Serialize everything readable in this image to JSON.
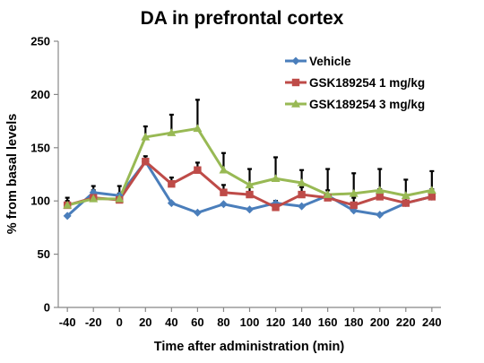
{
  "chart_data": {
    "type": "line",
    "title": "DA  in prefrontal cortex",
    "xlabel": "Time after administration (min)",
    "ylabel": "% from basal levels",
    "x": [
      -40,
      -20,
      0,
      20,
      40,
      60,
      80,
      100,
      120,
      140,
      160,
      180,
      200,
      220,
      240
    ],
    "ylim": [
      0,
      250
    ],
    "yticks": [
      0,
      50,
      100,
      150,
      200,
      250
    ],
    "grid": false,
    "legend_position": "top-right",
    "series": [
      {
        "name": "Vehicle",
        "color": "#4a7ebb",
        "marker": "diamond",
        "values": [
          86,
          108,
          105,
          137,
          98,
          89,
          97,
          92,
          98,
          95,
          105,
          91,
          87,
          98,
          104
        ],
        "errors": [
          0,
          0,
          0,
          0,
          0,
          0,
          0,
          0,
          0,
          0,
          0,
          0,
          0,
          0,
          0
        ]
      },
      {
        "name": "GSK189254  1 mg/kg",
        "color": "#be4b48",
        "marker": "square",
        "values": [
          96,
          103,
          101,
          137,
          116,
          129,
          108,
          106,
          94,
          106,
          103,
          96,
          104,
          98,
          104
        ],
        "errors": [
          4,
          7,
          6,
          5,
          6,
          7,
          7,
          7,
          6,
          7,
          7,
          7,
          7,
          7,
          7
        ]
      },
      {
        "name": "GSK189254  3 mg/kg",
        "color": "#98b954",
        "marker": "triangle",
        "values": [
          96,
          102,
          102,
          160,
          164,
          168,
          129,
          115,
          121,
          117,
          106,
          107,
          110,
          105,
          110
        ],
        "errors": [
          7,
          12,
          12,
          10,
          17,
          27,
          16,
          15,
          20,
          12,
          24,
          19,
          20,
          15,
          18
        ]
      }
    ]
  }
}
